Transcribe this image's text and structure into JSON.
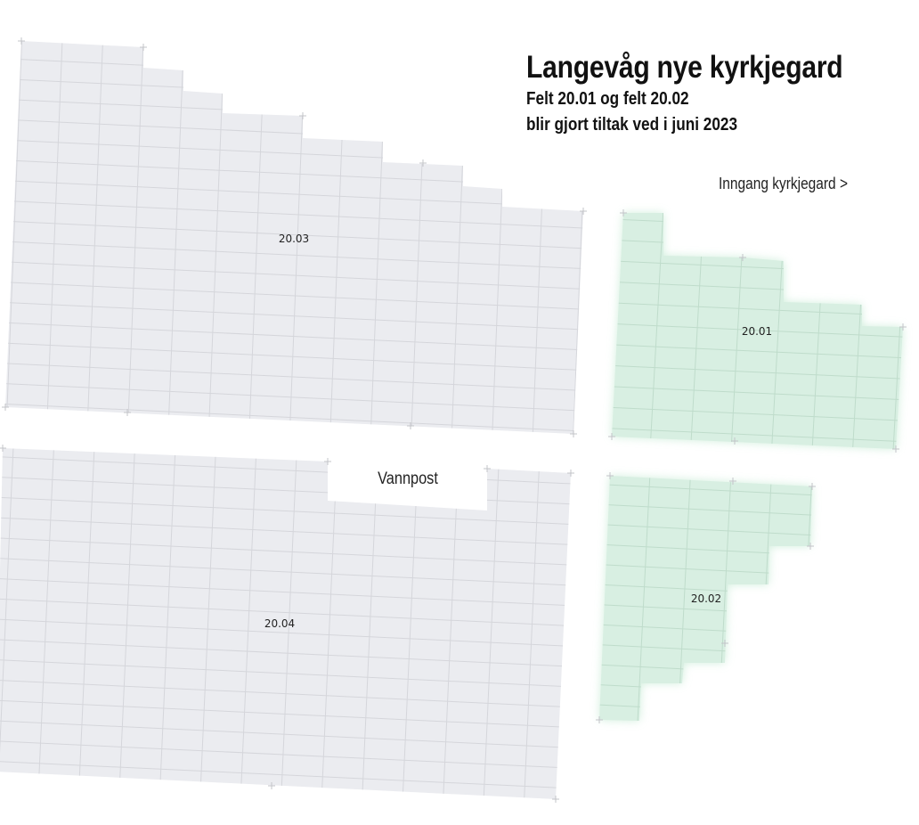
{
  "header": {
    "title": "Langevåg nye kyrkjegard",
    "subtitle_line1": "Felt 20.01 og felt 20.02",
    "subtitle_line2": "blir gjort tiltak ved i juni 2023"
  },
  "entrance_link": "Inngang kyrkjegard >",
  "fields": [
    {
      "id": "20.03",
      "label": "20.03",
      "highlighted": false
    },
    {
      "id": "20.04",
      "label": "20.04",
      "highlighted": false
    },
    {
      "id": "20.01",
      "label": "20.01",
      "highlighted": true
    },
    {
      "id": "20.02",
      "label": "20.02",
      "highlighted": true
    }
  ],
  "water_post": "Vannpost",
  "colors": {
    "field_fill": "#ebecf0",
    "highlight_fill": "#d8efe2",
    "grid_line": "#d5d6db",
    "highlight_grid": "#bfdccb",
    "text": "#111111"
  }
}
